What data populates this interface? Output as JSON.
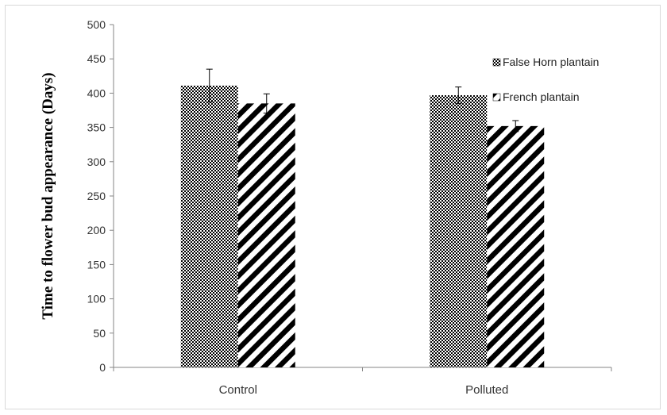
{
  "chart_data": {
    "type": "bar",
    "title": "",
    "xlabel": "",
    "ylabel": "Time to flower bud appearance (Days)",
    "categories": [
      "Control",
      "Polluted"
    ],
    "ylim": [
      0,
      500
    ],
    "yticks": [
      0,
      50,
      100,
      150,
      200,
      250,
      300,
      350,
      400,
      450,
      500
    ],
    "grid": false,
    "legend_position": "right",
    "series": [
      {
        "name": "False Horn plantain",
        "values": [
          411,
          397
        ],
        "errors": [
          24,
          12
        ],
        "pattern": "checker",
        "color": "#000000"
      },
      {
        "name": "French plantain",
        "values": [
          385,
          352
        ],
        "errors": [
          14,
          8
        ],
        "pattern": "diagonal-stripes",
        "color": "#000000"
      }
    ]
  }
}
